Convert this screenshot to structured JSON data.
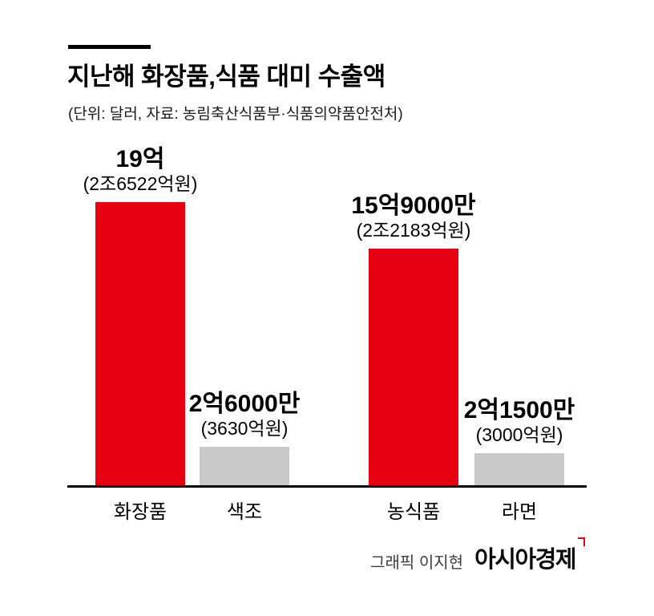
{
  "colors": {
    "accent_red": "#e60012",
    "bar_gray": "#c9c9c9",
    "axis_black": "#000000"
  },
  "header": {
    "title": "지난해 화장품,식품 대미 수출액",
    "subtitle": "(단위: 달러, 자료: 농림축산식품부·식품의약품안전처)"
  },
  "footer": {
    "credit": "그래픽 이지현",
    "brand": "아시아경제"
  },
  "chart_data": {
    "type": "bar",
    "title": "지난해 화장품,식품 대미 수출액",
    "unit": "달러",
    "categories": [
      "화장품",
      "색조",
      "농식품",
      "라면"
    ],
    "values": [
      19,
      2.6,
      15.9,
      2.15
    ],
    "values_unit": "억 달러",
    "value_labels": [
      "19억",
      "2억6000만",
      "15억9000만",
      "2억1500만"
    ],
    "sub_labels": [
      "(2조6522억원)",
      "(3630억원)",
      "(2조2183억원)",
      "(3000억원)"
    ],
    "bar_colors": [
      "#e60012",
      "#c9c9c9",
      "#e60012",
      "#c9c9c9"
    ],
    "ylim": [
      0,
      19
    ],
    "grid": false,
    "legend_position": "none",
    "xlabel": "",
    "ylabel": ""
  }
}
